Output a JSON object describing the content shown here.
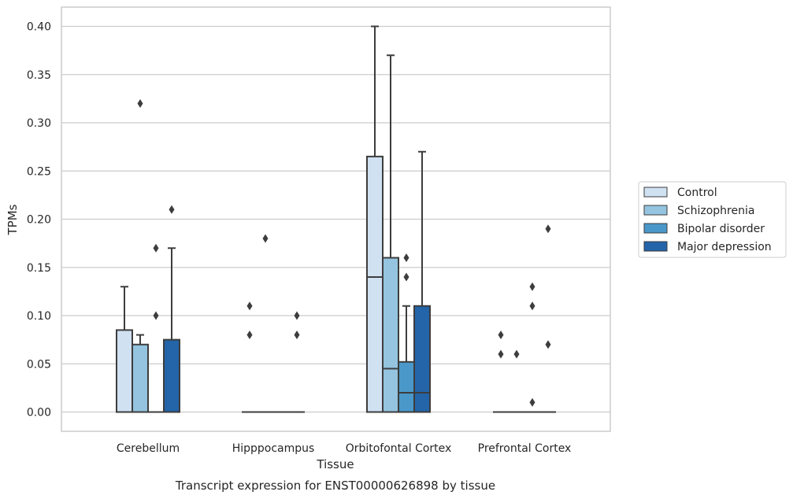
{
  "chart_data": {
    "type": "box",
    "caption": "Transcript expression for ENST00000626898 by tissue",
    "xlabel": "Tissue",
    "ylabel": "TPMs",
    "ylim": [
      -0.02,
      0.42
    ],
    "yticks": [
      "0.00",
      "0.05",
      "0.10",
      "0.15",
      "0.20",
      "0.25",
      "0.30",
      "0.35",
      "0.40"
    ],
    "grid": true,
    "legend_position": "right",
    "categories": [
      "Cerebellum",
      "Hipppocampus",
      "Orbitofontal Cortex",
      "Prefrontal Cortex"
    ],
    "series": [
      {
        "name": "Control",
        "color": "#d0e1f2",
        "boxes": [
          {
            "q1": 0.0,
            "median": 0.0,
            "q3": 0.085,
            "whisker_low": 0.0,
            "whisker_high": 0.13,
            "outliers": []
          },
          {
            "q1": 0.0,
            "median": 0.0,
            "q3": 0.0,
            "whisker_low": 0.0,
            "whisker_high": 0.0,
            "outliers": [
              0.08,
              0.11
            ]
          },
          {
            "q1": 0.0,
            "median": 0.14,
            "q3": 0.265,
            "whisker_low": 0.0,
            "whisker_high": 0.4,
            "outliers": []
          },
          {
            "q1": 0.0,
            "median": 0.0,
            "q3": 0.0,
            "whisker_low": 0.0,
            "whisker_high": 0.0,
            "outliers": [
              0.06,
              0.08
            ]
          }
        ]
      },
      {
        "name": "Schizophrenia",
        "color": "#94c4df",
        "boxes": [
          {
            "q1": 0.0,
            "median": 0.0,
            "q3": 0.07,
            "whisker_low": 0.0,
            "whisker_high": 0.08,
            "outliers": [
              0.32
            ]
          },
          {
            "q1": 0.0,
            "median": 0.0,
            "q3": 0.0,
            "whisker_low": 0.0,
            "whisker_high": 0.0,
            "outliers": [
              0.18
            ]
          },
          {
            "q1": 0.0,
            "median": 0.045,
            "q3": 0.16,
            "whisker_low": 0.0,
            "whisker_high": 0.37,
            "outliers": []
          },
          {
            "q1": 0.0,
            "median": 0.0,
            "q3": 0.0,
            "whisker_low": 0.0,
            "whisker_high": 0.0,
            "outliers": [
              0.06
            ]
          }
        ]
      },
      {
        "name": "Bipolar disorder",
        "color": "#4a98c9",
        "boxes": [
          {
            "q1": 0.0,
            "median": 0.0,
            "q3": 0.0,
            "whisker_low": 0.0,
            "whisker_high": 0.0,
            "outliers": [
              0.1,
              0.17
            ]
          },
          {
            "q1": 0.0,
            "median": 0.0,
            "q3": 0.0,
            "whisker_low": 0.0,
            "whisker_high": 0.0,
            "outliers": []
          },
          {
            "q1": 0.0,
            "median": 0.02,
            "q3": 0.052,
            "whisker_low": 0.0,
            "whisker_high": 0.11,
            "outliers": [
              0.14,
              0.16
            ]
          },
          {
            "q1": 0.0,
            "median": 0.0,
            "q3": 0.0,
            "whisker_low": 0.0,
            "whisker_high": 0.0,
            "outliers": [
              0.01,
              0.11,
              0.13
            ]
          }
        ]
      },
      {
        "name": "Major depression",
        "color": "#2464a8",
        "boxes": [
          {
            "q1": 0.0,
            "median": 0.0,
            "q3": 0.075,
            "whisker_low": 0.0,
            "whisker_high": 0.17,
            "outliers": [
              0.21
            ]
          },
          {
            "q1": 0.0,
            "median": 0.0,
            "q3": 0.0,
            "whisker_low": 0.0,
            "whisker_high": 0.0,
            "outliers": [
              0.08,
              0.1
            ]
          },
          {
            "q1": 0.0,
            "median": 0.02,
            "q3": 0.11,
            "whisker_low": 0.0,
            "whisker_high": 0.27,
            "outliers": []
          },
          {
            "q1": 0.0,
            "median": 0.0,
            "q3": 0.0,
            "whisker_low": 0.0,
            "whisker_high": 0.0,
            "outliers": [
              0.07,
              0.19
            ]
          }
        ]
      }
    ]
  }
}
